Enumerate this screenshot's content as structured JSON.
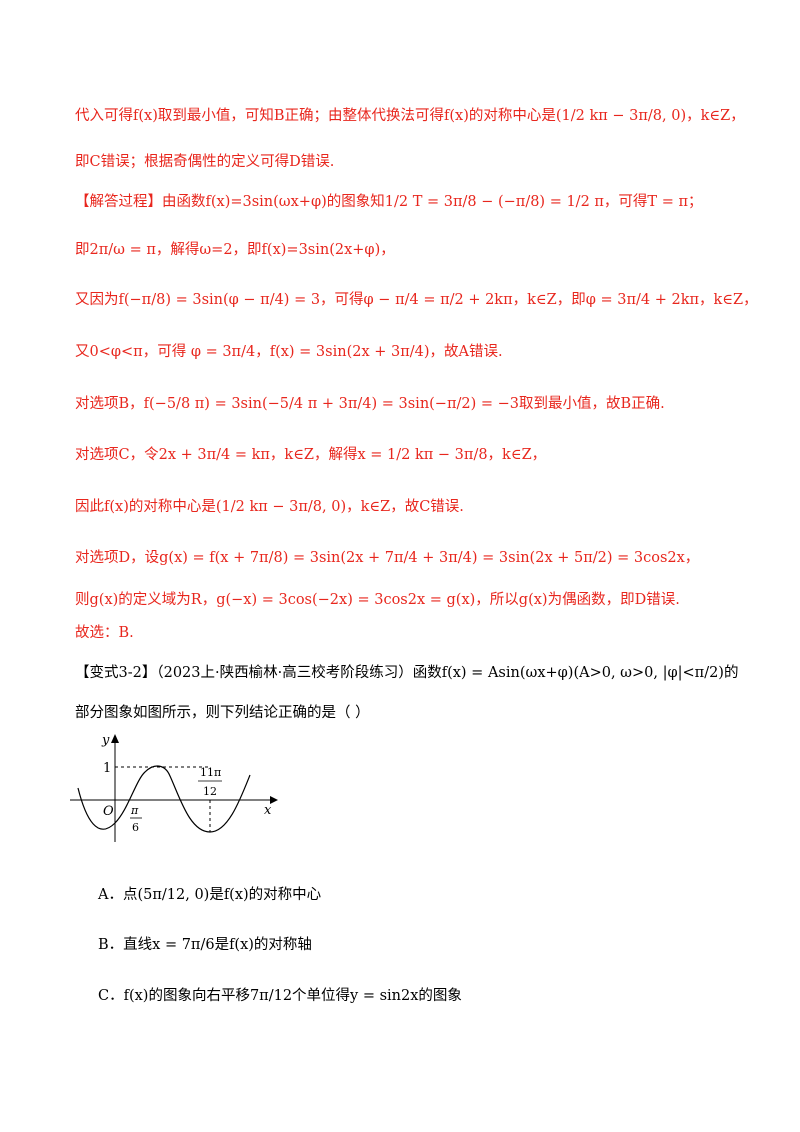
{
  "colors": {
    "answer_text": "#e8261d",
    "body_text": "#000000"
  },
  "solution": {
    "line1": "代入可得f(x)取到最小值，可知B正确；由整体代换法可得f(x)的对称中心是(1/2 kπ − 3π/8, 0)，k∈Z，",
    "line2": "即C错误；根据奇偶性的定义可得D错误.",
    "line3": "【解答过程】由函数f(x)=3sin(ωx+φ)的图象知1/2 T = 3π/8 − (−π/8) = 1/2 π，可得T = π；",
    "line4": "即2π/ω = π，解得ω=2，即f(x)=3sin(2x+φ)，",
    "line5": "又因为f(−π/8) = 3sin(φ − π/4) = 3，可得φ − π/4 = π/2 + 2kπ，k∈Z，即φ = 3π/4 + 2kπ，k∈Z，",
    "line6": "又0<φ<π，可得 φ = 3π/4，f(x) = 3sin(2x + 3π/4)，故A错误.",
    "line7": "对选项B，f(−5/8 π) = 3sin(−5/4 π + 3π/4) = 3sin(−π/2) = −3取到最小值，故B正确.",
    "line8": "对选项C，令2x + 3π/4 = kπ，k∈Z，解得x = 1/2 kπ − 3π/8，k∈Z，",
    "line9": "因此f(x)的对称中心是(1/2 kπ − 3π/8, 0)，k∈Z，故C错误.",
    "line10": "对选项D，设g(x) = f(x + 7π/8) = 3sin(2x + 7π/4 + 3π/4) = 3sin(2x + 5π/2) = 3cos2x，",
    "line11": "则g(x)的定义域为R，g(−x) = 3cos(−2x) = 3cos2x = g(x)，所以g(x)为偶函数，即D错误.",
    "line12": "故选：B."
  },
  "problem": {
    "line1": "【变式3-2】（2023上·陕西榆林·高三校考阶段练习）函数f(x) = Asin(ωx+φ)(A>0, ω>0, |φ|<π/2)的",
    "line2": "部分图象如图所示，则下列结论正确的是（    ）"
  },
  "graph": {
    "y_axis_label": "y",
    "x_axis_label": "x",
    "origin_label": "O",
    "max_label": "1",
    "tick_left_num": "π",
    "tick_left_den": "6",
    "tick_right_num": "11π",
    "tick_right_den": "12"
  },
  "options": [
    "A．点(5π/12, 0)是f(x)的对称中心",
    "B．直线x = 7π/6是f(x)的对称轴",
    "C．f(x)的图象向右平移7π/12个单位得y = sin2x的图象"
  ]
}
